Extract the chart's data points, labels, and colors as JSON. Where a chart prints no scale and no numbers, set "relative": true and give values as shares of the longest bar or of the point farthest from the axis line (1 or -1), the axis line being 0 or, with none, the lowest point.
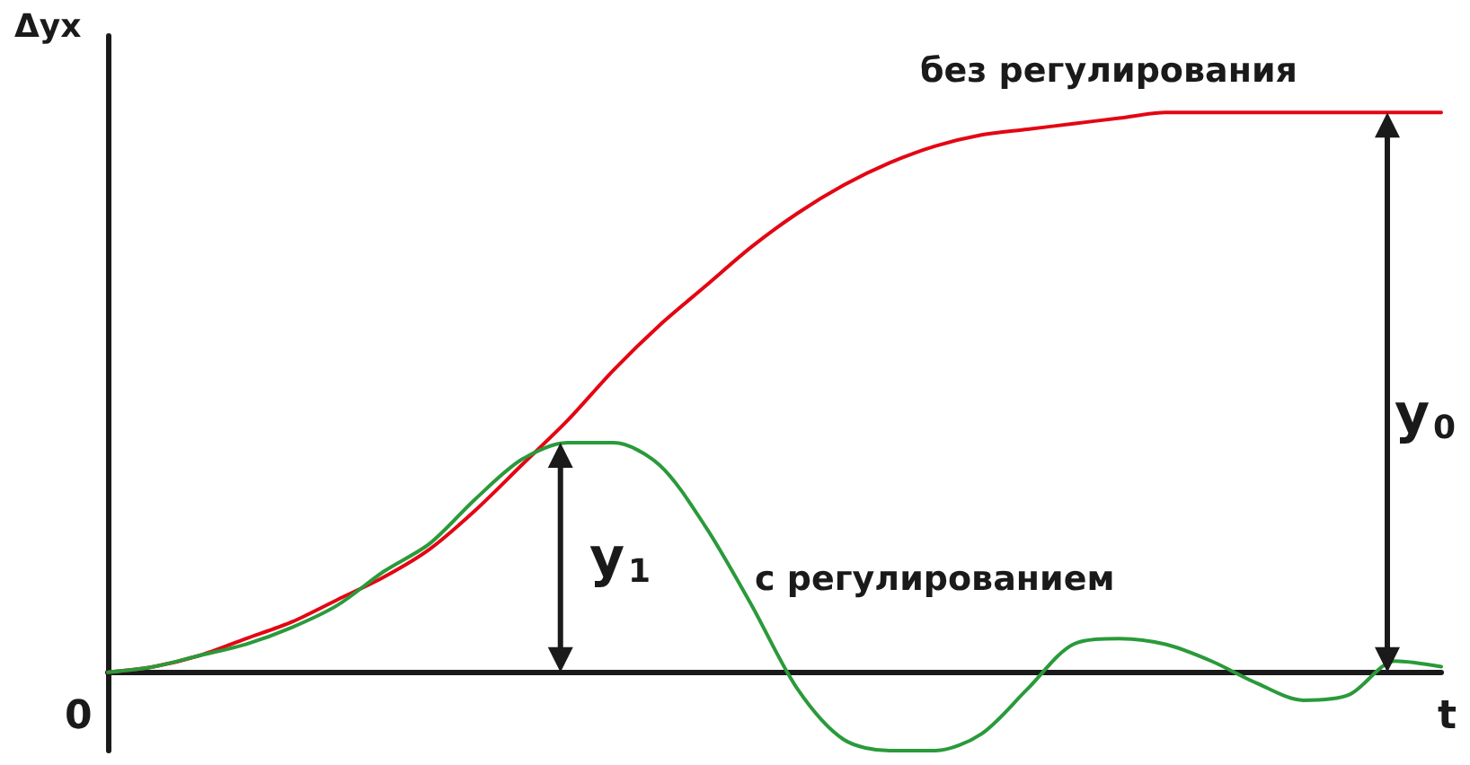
{
  "chart_data": {
    "type": "line",
    "relative": true,
    "ylabel": "Δух",
    "xlabel": "t",
    "categories": [
      null,
      null,
      null,
      null,
      null,
      null,
      null,
      null,
      null,
      null,
      null,
      null,
      null,
      null,
      null,
      null,
      null,
      null,
      null,
      null,
      null,
      null,
      null,
      null,
      null,
      null,
      null,
      null,
      null,
      null
    ],
    "series": [
      {
        "color": "#e30613",
        "values": [
          0,
          0.01,
          0.03,
          0.06,
          0.09,
          0.13,
          0.17,
          0.22,
          0.29,
          0.37,
          0.45,
          0.54,
          0.62,
          0.69,
          0.76,
          0.82,
          0.87,
          0.91,
          0.94,
          0.96,
          0.97,
          0.98,
          0.99,
          1,
          1,
          1,
          1,
          1,
          1,
          1
        ]
      },
      {
        "color": "#2a9a3a",
        "values": [
          0,
          0.01,
          0.03,
          0.05,
          0.08,
          0.12,
          0.18,
          0.23,
          0.31,
          0.38,
          0.41,
          0.41,
          0.37,
          0.26,
          0.12,
          -0.03,
          -0.12,
          -0.14,
          -0.14,
          -0.11,
          -0.03,
          0.05,
          0.06,
          0.05,
          0.02,
          -0.02,
          -0.05,
          -0.04,
          0.02,
          0.01
        ]
      }
    ],
    "annotations": [
      "без регулирования",
      "с регулированием",
      "y$_{1}$",
      "y$_{0}$",
      "0"
    ],
    "marker": "none",
    "line_style": "solid",
    "grid": false
  }
}
